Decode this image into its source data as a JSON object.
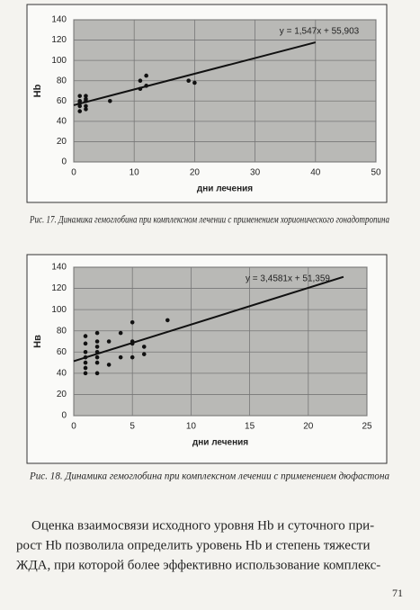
{
  "chart_data": [
    {
      "type": "scatter",
      "x_label": "дни лечения",
      "y_label": "Hb",
      "annotation": "y = 1,547x + 55,903",
      "x": [
        1,
        1,
        1,
        1,
        1,
        2,
        2,
        2,
        2,
        2,
        6,
        11,
        11,
        12,
        12,
        19,
        20
      ],
      "values": [
        65,
        60,
        55,
        50,
        58,
        65,
        60,
        55,
        52,
        62,
        60,
        80,
        72,
        75,
        85,
        80,
        78
      ],
      "color": "#111111",
      "trendline": {
        "x": [
          0,
          40
        ],
        "values": [
          55.903,
          117.783
        ]
      },
      "xlim": [
        0,
        50
      ],
      "xticks": [
        0,
        10,
        20,
        30,
        40,
        50
      ],
      "ylim": [
        0,
        140
      ],
      "yticks": [
        0,
        20,
        40,
        60,
        80,
        100,
        120,
        140
      ],
      "grid": true,
      "caption": "Рис. 17. Динамика гемоглобина при комплексном лечении с применением хорионического гонадотропина"
    },
    {
      "type": "scatter",
      "x_label": "дни лечения",
      "y_label": "Нв",
      "annotation": "y = 3,4581x + 51,359",
      "x": [
        1,
        1,
        1,
        1,
        1,
        1,
        1,
        2,
        2,
        2,
        2,
        2,
        2,
        2,
        3,
        3,
        4,
        4,
        5,
        5,
        5,
        5,
        6,
        6,
        8
      ],
      "values": [
        75,
        68,
        60,
        55,
        50,
        45,
        40,
        78,
        70,
        65,
        60,
        55,
        50,
        40,
        70,
        48,
        78,
        55,
        88,
        70,
        68,
        55,
        65,
        58,
        90
      ],
      "color": "#111111",
      "trendline": {
        "x": [
          0,
          23
        ],
        "values": [
          51.359,
          130.895
        ]
      },
      "xlim": [
        0,
        25
      ],
      "xticks": [
        0,
        5,
        10,
        15,
        20,
        25
      ],
      "ylim": [
        0,
        140
      ],
      "yticks": [
        0,
        20,
        40,
        60,
        80,
        100,
        120,
        140
      ],
      "grid": true,
      "caption": "Рис. 18. Динамика гемоглобина при комплексном лечении с применением дюфастона"
    }
  ],
  "paragraph": [
    "Оценка взаимосвязи исходного уровня Hb и суточного при-",
    "рост Hb позволила определить уровень Hb и степень тяжести",
    "ЖДА, при которой более эффективно использование комплекс-"
  ],
  "page_number": "71"
}
